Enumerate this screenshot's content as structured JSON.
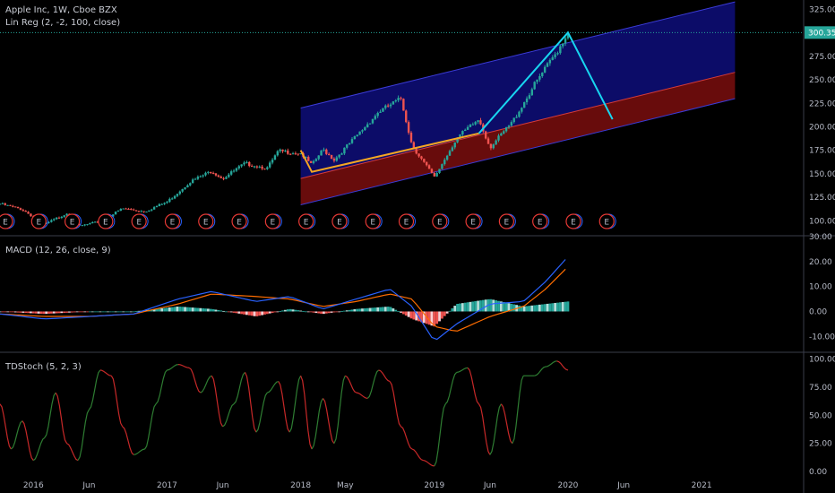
{
  "header": {
    "symbol": "Apple Inc, 1W, Cboe BZX",
    "linreg": "Lin Reg (2, -2, 100, close)",
    "macd": "MACD (12, 26, close, 9)",
    "tdstoch": "TDStoch (5, 2, 3)"
  },
  "price_tag": "300.35",
  "colors": {
    "bull": "#26a69a",
    "bear": "#ef5350",
    "upper_channel": "#0d0d6e",
    "lower_channel": "#6e0d0d",
    "pattern_line": "#18d6f0",
    "pattern_bottom": "#f5a623",
    "macd_line": "#2962ff",
    "signal_line": "#ff6d00",
    "stoch_up": "#2e7d32",
    "stoch_down": "#c62828",
    "event_circle": "#e53935"
  },
  "chart_data": [
    {
      "type": "candlestick",
      "pane": "price",
      "x_ticks": [
        "2016",
        "Jun",
        "2017",
        "Jun",
        "2018",
        "May",
        "2019",
        "Jun",
        "2020",
        "Jun",
        "2021"
      ],
      "y_ticks": [
        100,
        125,
        150,
        175,
        200,
        225,
        250,
        275,
        300,
        325
      ],
      "ylim": [
        85,
        335
      ],
      "last_price": 300.35,
      "event_markers": "E",
      "series": [
        {
          "name": "Close",
          "points": [
            [
              "2015-10",
              118
            ],
            [
              "2015-12",
              112
            ],
            [
              "2016-02",
              96
            ],
            [
              "2016-04",
              108
            ],
            [
              "2016-05",
              94
            ],
            [
              "2016-07",
              99
            ],
            [
              "2016-09",
              113
            ],
            [
              "2016-11",
              110
            ],
            [
              "2017-01",
              120
            ],
            [
              "2017-03",
              141
            ],
            [
              "2017-05",
              153
            ],
            [
              "2017-06",
              145
            ],
            [
              "2017-08",
              161
            ],
            [
              "2017-10",
              156
            ],
            [
              "2017-11",
              174
            ],
            [
              "2018-01",
              172
            ],
            [
              "2018-02",
              159
            ],
            [
              "2018-03",
              176
            ],
            [
              "2018-04",
              165
            ],
            [
              "2018-06",
              190
            ],
            [
              "2018-08",
              216
            ],
            [
              "2018-10",
              230
            ],
            [
              "2018-11",
              180
            ],
            [
              "2019-01",
              146
            ],
            [
              "2019-03",
              188
            ],
            [
              "2019-05",
              208
            ],
            [
              "2019-06",
              178
            ],
            [
              "2019-08",
              205
            ],
            [
              "2019-10",
              245
            ],
            [
              "2019-12",
              280
            ],
            [
              "2020-01",
              300.35
            ]
          ]
        }
      ],
      "channel": {
        "start": "2018-01",
        "end": "2021-04",
        "mid_start": 145,
        "mid_end": 258,
        "upper_offset": 75,
        "lower_offset": -28
      },
      "pattern": [
        [
          "2018-01",
          175
        ],
        [
          "2018-02",
          152
        ],
        [
          "2019-05",
          193
        ],
        [
          "2020-01",
          300.35
        ],
        [
          "2020-05",
          208
        ]
      ]
    },
    {
      "type": "line",
      "pane": "MACD",
      "y_ticks": [
        -10,
        0,
        10,
        20,
        30
      ],
      "ylim": [
        -16,
        30
      ],
      "series": [
        {
          "name": "MACD",
          "points": [
            [
              "2015-10",
              -1
            ],
            [
              "2016-02",
              -3
            ],
            [
              "2016-06",
              -2
            ],
            [
              "2016-10",
              -1
            ],
            [
              "2017-02",
              5
            ],
            [
              "2017-05",
              8
            ],
            [
              "2017-09",
              4
            ],
            [
              "2017-12",
              6
            ],
            [
              "2018-03",
              1
            ],
            [
              "2018-06",
              5
            ],
            [
              "2018-09",
              9
            ],
            [
              "2018-11",
              2
            ],
            [
              "2019-01",
              -12
            ],
            [
              "2019-03",
              -5
            ],
            [
              "2019-06",
              3
            ],
            [
              "2019-09",
              4
            ],
            [
              "2019-11",
              12
            ],
            [
              "2020-01",
              22
            ]
          ]
        },
        {
          "name": "Signal",
          "points": [
            [
              "2015-10",
              -1
            ],
            [
              "2016-02",
              -2
            ],
            [
              "2016-06",
              -2
            ],
            [
              "2016-10",
              -1
            ],
            [
              "2017-02",
              3
            ],
            [
              "2017-05",
              7
            ],
            [
              "2017-09",
              6
            ],
            [
              "2017-12",
              5
            ],
            [
              "2018-03",
              2
            ],
            [
              "2018-06",
              4
            ],
            [
              "2018-09",
              7
            ],
            [
              "2018-11",
              5
            ],
            [
              "2019-01",
              -6
            ],
            [
              "2019-03",
              -8
            ],
            [
              "2019-06",
              -2
            ],
            [
              "2019-09",
              2
            ],
            [
              "2019-11",
              9
            ],
            [
              "2020-01",
              18
            ]
          ]
        }
      ]
    },
    {
      "type": "line",
      "pane": "TDStoch",
      "y_ticks": [
        0,
        25,
        50,
        75,
        100
      ],
      "ylim": [
        -3,
        105
      ],
      "series": [
        {
          "name": "TDStoch",
          "points": [
            [
              "2015-10",
              60
            ],
            [
              "2015-11",
              20
            ],
            [
              "2015-12",
              45
            ],
            [
              "2016-01",
              10
            ],
            [
              "2016-02",
              30
            ],
            [
              "2016-03",
              70
            ],
            [
              "2016-04",
              25
            ],
            [
              "2016-05",
              10
            ],
            [
              "2016-06",
              55
            ],
            [
              "2016-07",
              90
            ],
            [
              "2016-08",
              85
            ],
            [
              "2016-09",
              40
            ],
            [
              "2016-10",
              15
            ],
            [
              "2016-11",
              20
            ],
            [
              "2016-12",
              60
            ],
            [
              "2017-01",
              90
            ],
            [
              "2017-02",
              95
            ],
            [
              "2017-03",
              92
            ],
            [
              "2017-04",
              70
            ],
            [
              "2017-05",
              85
            ],
            [
              "2017-06",
              40
            ],
            [
              "2017-07",
              60
            ],
            [
              "2017-08",
              88
            ],
            [
              "2017-09",
              35
            ],
            [
              "2017-10",
              70
            ],
            [
              "2017-11",
              80
            ],
            [
              "2017-12",
              35
            ],
            [
              "2018-01",
              85
            ],
            [
              "2018-02",
              20
            ],
            [
              "2018-03",
              65
            ],
            [
              "2018-04",
              25
            ],
            [
              "2018-05",
              85
            ],
            [
              "2018-06",
              70
            ],
            [
              "2018-07",
              65
            ],
            [
              "2018-08",
              90
            ],
            [
              "2018-09",
              80
            ],
            [
              "2018-10",
              40
            ],
            [
              "2018-11",
              20
            ],
            [
              "2018-12",
              10
            ],
            [
              "2019-01",
              5
            ],
            [
              "2019-02",
              60
            ],
            [
              "2019-03",
              88
            ],
            [
              "2019-04",
              92
            ],
            [
              "2019-05",
              60
            ],
            [
              "2019-06",
              15
            ],
            [
              "2019-07",
              60
            ],
            [
              "2019-08",
              25
            ],
            [
              "2019-09",
              85
            ],
            [
              "2019-10",
              85
            ],
            [
              "2019-11",
              93
            ],
            [
              "2019-12",
              98
            ],
            [
              "2020-01",
              90
            ]
          ]
        }
      ]
    }
  ]
}
